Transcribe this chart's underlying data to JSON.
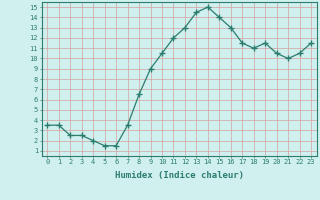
{
  "x": [
    0,
    1,
    2,
    3,
    4,
    5,
    6,
    7,
    8,
    9,
    10,
    11,
    12,
    13,
    14,
    15,
    16,
    17,
    18,
    19,
    20,
    21,
    22,
    23
  ],
  "y": [
    3.5,
    3.5,
    2.5,
    2.5,
    2.0,
    1.5,
    1.5,
    3.5,
    6.5,
    9.0,
    10.5,
    12.0,
    13.0,
    14.5,
    15.0,
    14.0,
    13.0,
    11.5,
    11.0,
    11.5,
    10.5,
    10.0,
    10.5,
    11.5
  ],
  "xlabel": "Humidex (Indice chaleur)",
  "ylabel": "",
  "xlim": [
    -0.5,
    23.5
  ],
  "ylim": [
    0.5,
    15.5
  ],
  "yticks": [
    1,
    2,
    3,
    4,
    5,
    6,
    7,
    8,
    9,
    10,
    11,
    12,
    13,
    14,
    15
  ],
  "xticks": [
    0,
    1,
    2,
    3,
    4,
    5,
    6,
    7,
    8,
    9,
    10,
    11,
    12,
    13,
    14,
    15,
    16,
    17,
    18,
    19,
    20,
    21,
    22,
    23
  ],
  "line_color": "#2d7d6e",
  "marker_color": "#2d7d6e",
  "bg_color": "#cff0ee",
  "grid_color_major": "#d4a0a0",
  "grid_color_minor": "#e8d0d0",
  "axis_label_color": "#2d7d6e",
  "spine_color": "#2d7d6e"
}
